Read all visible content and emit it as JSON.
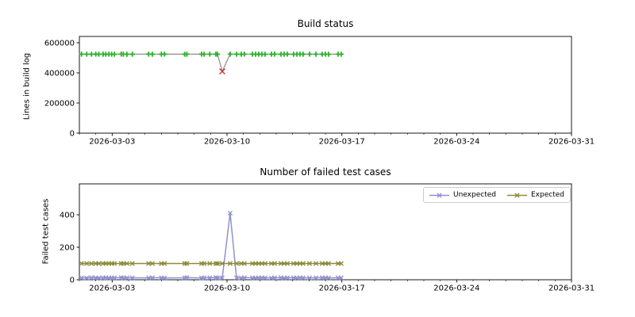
{
  "figure": {
    "background": "#ffffff"
  },
  "chart_data": [
    {
      "id": "build-status-chart",
      "type": "line",
      "title": "Build status",
      "ylabel": "Lines in build log",
      "xlabel": "",
      "grid": false,
      "x_axis": {
        "origin_date": "2026-03-01",
        "unit": "days_from_origin",
        "xlim_days": [
          0,
          30
        ],
        "minor_tick_every_days": 1,
        "ticks": [
          {
            "d": 2,
            "label": "2026-03-03"
          },
          {
            "d": 9,
            "label": "2026-03-10"
          },
          {
            "d": 16,
            "label": "2026-03-17"
          },
          {
            "d": 23,
            "label": "2026-03-24"
          },
          {
            "d": 30,
            "label": "2026-03-31"
          }
        ]
      },
      "y_axis": {
        "ylim": [
          0,
          642000
        ],
        "ticks": [
          {
            "v": 0,
            "label": "0"
          },
          {
            "v": 200000,
            "label": "200000"
          },
          {
            "v": 400000,
            "label": "400000"
          },
          {
            "v": 600000,
            "label": "600000"
          }
        ]
      },
      "series": [
        {
          "name": "Lines in build log",
          "line_color": "#949494",
          "line_width": 1.3,
          "marker": "plus",
          "marker_color": "#2db22d",
          "fail_index": 25,
          "fail_marker": "x",
          "fail_color": "#cc3333",
          "x_days": [
            0.13,
            0.45,
            0.74,
            1.0,
            1.18,
            1.45,
            1.61,
            1.8,
            1.97,
            2.14,
            2.55,
            2.68,
            2.9,
            3.23,
            4.22,
            4.45,
            5.0,
            5.19,
            6.42,
            6.55,
            7.45,
            7.6,
            7.95,
            8.32,
            8.42,
            8.71,
            9.19,
            9.58,
            9.87,
            10.06,
            10.55,
            10.74,
            10.93,
            11.13,
            11.32,
            11.71,
            11.9,
            12.29,
            12.48,
            12.68,
            13.06,
            13.26,
            13.45,
            13.64,
            14.03,
            14.42,
            14.8,
            15.0,
            15.19,
            15.77,
            15.96
          ],
          "values": [
            524311,
            524102,
            523988,
            524560,
            523804,
            524230,
            523952,
            524410,
            524106,
            523708,
            524903,
            524308,
            523612,
            524055,
            524801,
            523907,
            524204,
            524603,
            523851,
            524152,
            524707,
            523956,
            524351,
            524502,
            523753,
            410212,
            524904,
            524101,
            523807,
            524403,
            524252,
            523951,
            524601,
            524053,
            523702,
            524302,
            524854,
            523903,
            524203,
            524504,
            523801,
            524102,
            524653,
            523952,
            524351,
            524203,
            523853,
            524453,
            524003,
            524303,
            524151
          ]
        }
      ]
    },
    {
      "id": "failed-tests-chart",
      "type": "line",
      "title": "Number of failed test cases",
      "ylabel": "Failed test cases",
      "xlabel": "",
      "grid": false,
      "legend": {
        "position": "upper right",
        "entries": [
          "Unexpected",
          "Expected"
        ]
      },
      "x_axis": {
        "origin_date": "2026-03-01",
        "unit": "days_from_origin",
        "xlim_days": [
          0,
          30
        ],
        "minor_tick_every_days": 1,
        "ticks": [
          {
            "d": 2,
            "label": "2026-03-03"
          },
          {
            "d": 9,
            "label": "2026-03-10"
          },
          {
            "d": 16,
            "label": "2026-03-17"
          },
          {
            "d": 23,
            "label": "2026-03-24"
          },
          {
            "d": 30,
            "label": "2026-03-31"
          }
        ]
      },
      "y_axis": {
        "ylim": [
          0,
          590
        ],
        "ticks": [
          {
            "v": 0,
            "label": "0"
          },
          {
            "v": 200,
            "label": "200"
          },
          {
            "v": 400,
            "label": "400"
          }
        ]
      },
      "series": [
        {
          "name": "Unexpected",
          "color": "#9090d0",
          "line_width": 1.5,
          "marker": "x",
          "x_days": [
            0.13,
            0.45,
            0.74,
            1.0,
            1.18,
            1.45,
            1.61,
            1.8,
            1.97,
            2.14,
            2.55,
            2.68,
            2.9,
            3.23,
            4.22,
            4.45,
            5.0,
            5.19,
            6.42,
            6.55,
            7.45,
            7.6,
            7.95,
            8.32,
            8.42,
            8.71,
            9.19,
            9.58,
            9.87,
            10.06,
            10.55,
            10.74,
            10.93,
            11.13,
            11.32,
            11.71,
            11.9,
            12.29,
            12.48,
            12.68,
            13.06,
            13.26,
            13.45,
            13.64,
            14.03,
            14.42,
            14.8,
            15.0,
            15.19,
            15.77,
            15.96
          ],
          "values": [
            12,
            11,
            13,
            12,
            11,
            12,
            13,
            11,
            12,
            12,
            13,
            11,
            12,
            12,
            11,
            13,
            12,
            11,
            12,
            13,
            11,
            12,
            12,
            13,
            11,
            12,
            410,
            12,
            11,
            13,
            12,
            11,
            12,
            13,
            12,
            11,
            12,
            13,
            11,
            12,
            12,
            11,
            13,
            12,
            11,
            12,
            13,
            12,
            11,
            12,
            12
          ]
        },
        {
          "name": "Expected",
          "color": "#8c8c3c",
          "line_width": 1.5,
          "marker": "x",
          "x_days": [
            0.13,
            0.45,
            0.74,
            1.0,
            1.18,
            1.45,
            1.61,
            1.8,
            1.97,
            2.14,
            2.55,
            2.68,
            2.9,
            3.23,
            4.22,
            4.45,
            5.0,
            5.19,
            6.42,
            6.55,
            7.45,
            7.6,
            7.95,
            8.32,
            8.42,
            8.71,
            9.19,
            9.58,
            9.87,
            10.06,
            10.55,
            10.74,
            10.93,
            11.13,
            11.32,
            11.71,
            11.9,
            12.29,
            12.48,
            12.68,
            13.06,
            13.26,
            13.45,
            13.64,
            14.03,
            14.42,
            14.8,
            15.0,
            15.19,
            15.77,
            15.96
          ],
          "values": [
            100,
            100,
            100,
            100,
            100,
            100,
            100,
            100,
            100,
            100,
            100,
            100,
            100,
            100,
            100,
            100,
            100,
            100,
            100,
            100,
            100,
            100,
            100,
            100,
            100,
            100,
            100,
            100,
            100,
            100,
            100,
            100,
            100,
            100,
            100,
            100,
            100,
            100,
            100,
            100,
            100,
            100,
            100,
            100,
            100,
            100,
            100,
            100,
            100,
            100,
            100
          ]
        }
      ]
    }
  ]
}
